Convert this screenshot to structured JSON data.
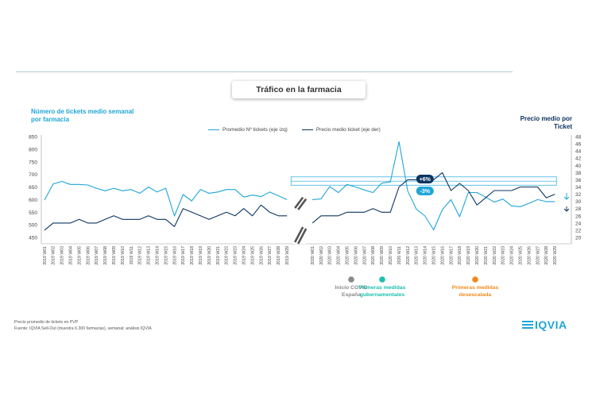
{
  "page": {
    "title": "Tráfico en la farmacia"
  },
  "axes": {
    "left_label": "Número de tickets medio semanal por farmacia",
    "right_label": "Precio medio por Ticket"
  },
  "notes": {
    "line1": "Precio promedio de tickets en PVP",
    "line2": "Fuente: IQVIA Sell-Out (muestra 6.300 farmacias), semanal; análisis IQVIA"
  },
  "logo": {
    "text": "IQVIA"
  },
  "colors": {
    "tickets": "#1fa6d9",
    "price": "#0c3560",
    "covid_marker": "#8a8a8a",
    "gov_marker": "#1bbfb0",
    "deesc_marker": "#f08a1c",
    "badge_up": "#0c3560",
    "badge_down": "#1fa6d9",
    "grid": "#e3e3e3"
  },
  "events": [
    {
      "label": "Inicio COVID España",
      "week": "2020 W11",
      "color_key": "covid_marker"
    },
    {
      "label": "Primeras medidas gubernamentales",
      "week": "2020 W12",
      "color_key": "gov_marker"
    },
    {
      "label": "Primeras medidas desescalada",
      "week": "2020 W19",
      "color_key": "deesc_marker"
    }
  ],
  "annotations": [
    {
      "text": "+6%",
      "color_key": "badge_up"
    },
    {
      "text": "-3%",
      "color_key": "badge_down"
    }
  ],
  "chart_data": {
    "type": "line",
    "categories": [
      "2019 W01",
      "2019 W02",
      "2019 W03",
      "2019 W04",
      "2019 W05",
      "2019 W06",
      "2019 W07",
      "2019 W08",
      "2019 W09",
      "2019 W10",
      "2019 W11",
      "2019 W12",
      "2019 W13",
      "2019 W14",
      "2019 W15",
      "2019 W16",
      "2019 W17",
      "2019 W18",
      "2019 W19",
      "2019 W20",
      "2019 W21",
      "2019 W22",
      "2019 W23",
      "2019 W24",
      "2019 W25",
      "2019 W26",
      "2019 W27",
      "2019 W28",
      "2019 W29",
      "2020 W01",
      "2020 W02",
      "2020 W03",
      "2020 W04",
      "2020 W05",
      "2020 W06",
      "2020 W07",
      "2020 W08",
      "2020 W09",
      "2020 W10",
      "2020 W11",
      "2020 W12",
      "2020 W13",
      "2020 W14",
      "2020 W15",
      "2020 W16",
      "2020 W17",
      "2020 W18",
      "2020 W19",
      "2020 W20",
      "2020 W21",
      "2020 W22",
      "2020 W23",
      "2020 W24",
      "2020 W25",
      "2020 W26",
      "2020 W27",
      "2020 W28",
      "2020 W29"
    ],
    "series": [
      {
        "name": "Promedio Nº tickets (eje izq)",
        "axis": "left",
        "color_key": "tickets",
        "values": [
          598,
          662,
          672,
          660,
          660,
          658,
          645,
          635,
          645,
          635,
          640,
          625,
          650,
          630,
          645,
          535,
          620,
          595,
          640,
          625,
          630,
          640,
          640,
          610,
          618,
          612,
          630,
          615,
          600,
          600,
          603,
          652,
          628,
          660,
          650,
          638,
          628,
          665,
          670,
          830,
          635,
          562,
          535,
          480,
          560,
          600,
          532,
          628,
          628,
          610,
          590,
          602,
          575,
          572,
          585,
          600,
          592,
          592
        ]
      },
      {
        "name": "Precio medio ticket (eje der)",
        "axis": "right",
        "color_key": "price",
        "values": [
          22,
          24,
          24,
          24,
          25,
          24,
          24,
          25,
          26,
          25,
          25,
          25,
          26,
          25,
          25,
          23,
          28,
          27,
          26,
          25,
          26,
          27,
          26,
          28,
          26,
          29,
          27,
          26,
          26,
          24,
          26,
          26,
          26,
          27,
          27,
          27,
          28,
          27,
          27,
          34,
          36,
          36,
          37,
          36,
          38,
          33,
          35,
          33,
          29,
          31,
          33,
          33,
          33,
          34,
          34,
          34,
          31,
          32
        ]
      }
    ],
    "left_axis": {
      "min": 450,
      "max": 850,
      "ticks": [
        450,
        500,
        550,
        600,
        650,
        700,
        750,
        800,
        850
      ]
    },
    "right_axis": {
      "min": 20,
      "max": 48,
      "ticks": [
        20,
        22,
        24,
        26,
        28,
        30,
        32,
        34,
        36,
        38,
        40,
        42,
        44,
        46,
        48
      ]
    },
    "axis_break": "between 2019 W29 and 2020 W01",
    "legend_position": "top-center",
    "grid": false
  }
}
